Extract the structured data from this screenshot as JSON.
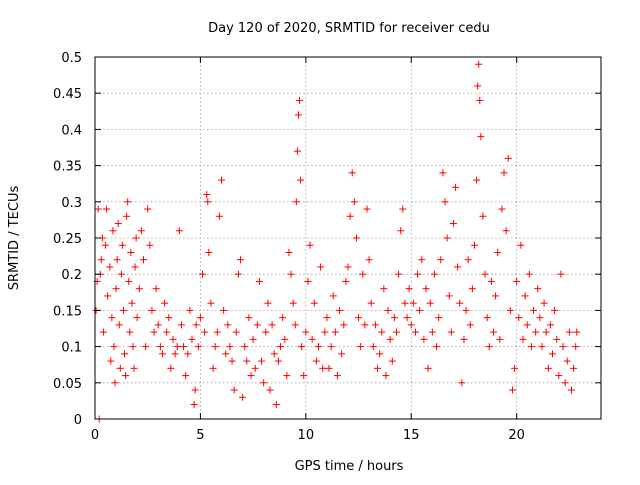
{
  "chart_data": {
    "type": "scatter",
    "title": "Day 120 of 2020, SRMTID for receiver cedu",
    "xlabel": "GPS time / hours",
    "ylabel": "SRMTID / TECUs",
    "xlim": [
      0,
      24.0
    ],
    "ylim": [
      0,
      0.5
    ],
    "x_ticks": [
      0,
      5,
      10,
      15,
      20
    ],
    "x_tick_labels": [
      "0",
      "5",
      "10",
      "15",
      "20"
    ],
    "y_ticks": [
      0,
      0.05,
      0.1,
      0.15,
      0.2,
      0.25,
      0.3,
      0.35,
      0.4,
      0.45,
      0.5
    ],
    "y_tick_labels": [
      "0",
      "0.05",
      "0.1",
      "0.15",
      "0.2",
      "0.25",
      "0.3",
      "0.35",
      "0.4",
      "0.45",
      "0.5"
    ],
    "grid": true,
    "marker": "+",
    "series": [
      {
        "name": "SRMTID",
        "color": "#ff0000",
        "points": [
          [
            0.05,
            0.15
          ],
          [
            0.1,
            0.19
          ],
          [
            0.15,
            0.29
          ],
          [
            0.2,
            0.0
          ],
          [
            0.25,
            0.2
          ],
          [
            0.3,
            0.22
          ],
          [
            0.35,
            0.25
          ],
          [
            0.4,
            0.12
          ],
          [
            0.5,
            0.24
          ],
          [
            0.55,
            0.29
          ],
          [
            0.6,
            0.17
          ],
          [
            0.7,
            0.21
          ],
          [
            0.75,
            0.08
          ],
          [
            0.8,
            0.14
          ],
          [
            0.85,
            0.26
          ],
          [
            0.9,
            0.1
          ],
          [
            0.95,
            0.05
          ],
          [
            1.0,
            0.18
          ],
          [
            1.05,
            0.22
          ],
          [
            1.1,
            0.27
          ],
          [
            1.15,
            0.13
          ],
          [
            1.2,
            0.07
          ],
          [
            1.25,
            0.2
          ],
          [
            1.3,
            0.24
          ],
          [
            1.35,
            0.15
          ],
          [
            1.4,
            0.09
          ],
          [
            1.45,
            0.06
          ],
          [
            1.5,
            0.28
          ],
          [
            1.55,
            0.3
          ],
          [
            1.6,
            0.19
          ],
          [
            1.65,
            0.12
          ],
          [
            1.7,
            0.23
          ],
          [
            1.75,
            0.16
          ],
          [
            1.8,
            0.1
          ],
          [
            1.85,
            0.07
          ],
          [
            1.9,
            0.21
          ],
          [
            1.95,
            0.25
          ],
          [
            2.0,
            0.14
          ],
          [
            2.1,
            0.18
          ],
          [
            2.2,
            0.26
          ],
          [
            2.3,
            0.22
          ],
          [
            2.4,
            0.1
          ],
          [
            2.5,
            0.29
          ],
          [
            2.6,
            0.24
          ],
          [
            2.7,
            0.15
          ],
          [
            2.8,
            0.12
          ],
          [
            2.9,
            0.18
          ],
          [
            3.0,
            0.13
          ],
          [
            3.1,
            0.1
          ],
          [
            3.2,
            0.09
          ],
          [
            3.3,
            0.16
          ],
          [
            3.4,
            0.12
          ],
          [
            3.5,
            0.14
          ],
          [
            3.6,
            0.07
          ],
          [
            3.7,
            0.11
          ],
          [
            3.8,
            0.09
          ],
          [
            3.9,
            0.1
          ],
          [
            4.0,
            0.26
          ],
          [
            4.1,
            0.13
          ],
          [
            4.2,
            0.1
          ],
          [
            4.3,
            0.06
          ],
          [
            4.4,
            0.09
          ],
          [
            4.5,
            0.15
          ],
          [
            4.6,
            0.11
          ],
          [
            4.7,
            0.02
          ],
          [
            4.75,
            0.04
          ],
          [
            4.8,
            0.13
          ],
          [
            4.9,
            0.1
          ],
          [
            5.0,
            0.14
          ],
          [
            5.1,
            0.2
          ],
          [
            5.2,
            0.12
          ],
          [
            5.3,
            0.31
          ],
          [
            5.35,
            0.3
          ],
          [
            5.4,
            0.23
          ],
          [
            5.5,
            0.16
          ],
          [
            5.6,
            0.07
          ],
          [
            5.7,
            0.1
          ],
          [
            5.8,
            0.12
          ],
          [
            5.9,
            0.28
          ],
          [
            6.0,
            0.33
          ],
          [
            6.1,
            0.15
          ],
          [
            6.2,
            0.09
          ],
          [
            6.3,
            0.13
          ],
          [
            6.4,
            0.1
          ],
          [
            6.5,
            0.08
          ],
          [
            6.6,
            0.04
          ],
          [
            6.7,
            0.12
          ],
          [
            6.8,
            0.2
          ],
          [
            6.9,
            0.22
          ],
          [
            7.0,
            0.03
          ],
          [
            7.1,
            0.1
          ],
          [
            7.2,
            0.08
          ],
          [
            7.3,
            0.14
          ],
          [
            7.4,
            0.06
          ],
          [
            7.5,
            0.11
          ],
          [
            7.6,
            0.07
          ],
          [
            7.7,
            0.13
          ],
          [
            7.8,
            0.19
          ],
          [
            7.9,
            0.08
          ],
          [
            8.0,
            0.05
          ],
          [
            8.1,
            0.12
          ],
          [
            8.2,
            0.16
          ],
          [
            8.3,
            0.04
          ],
          [
            8.4,
            0.13
          ],
          [
            8.5,
            0.09
          ],
          [
            8.6,
            0.02
          ],
          [
            8.7,
            0.08
          ],
          [
            8.8,
            0.1
          ],
          [
            8.9,
            0.14
          ],
          [
            9.0,
            0.11
          ],
          [
            9.1,
            0.06
          ],
          [
            9.2,
            0.23
          ],
          [
            9.3,
            0.2
          ],
          [
            9.4,
            0.16
          ],
          [
            9.5,
            0.13
          ],
          [
            9.55,
            0.3
          ],
          [
            9.6,
            0.37
          ],
          [
            9.65,
            0.42
          ],
          [
            9.7,
            0.44
          ],
          [
            9.75,
            0.33
          ],
          [
            9.8,
            0.1
          ],
          [
            9.9,
            0.06
          ],
          [
            10.0,
            0.12
          ],
          [
            10.1,
            0.19
          ],
          [
            10.2,
            0.24
          ],
          [
            10.3,
            0.11
          ],
          [
            10.4,
            0.16
          ],
          [
            10.5,
            0.08
          ],
          [
            10.6,
            0.1
          ],
          [
            10.7,
            0.21
          ],
          [
            10.8,
            0.07
          ],
          [
            10.9,
            0.12
          ],
          [
            11.0,
            0.14
          ],
          [
            11.1,
            0.07
          ],
          [
            11.2,
            0.1
          ],
          [
            11.3,
            0.17
          ],
          [
            11.4,
            0.12
          ],
          [
            11.5,
            0.06
          ],
          [
            11.6,
            0.15
          ],
          [
            11.7,
            0.09
          ],
          [
            11.8,
            0.13
          ],
          [
            11.9,
            0.19
          ],
          [
            12.0,
            0.21
          ],
          [
            12.1,
            0.28
          ],
          [
            12.2,
            0.34
          ],
          [
            12.3,
            0.3
          ],
          [
            12.4,
            0.25
          ],
          [
            12.5,
            0.14
          ],
          [
            12.6,
            0.1
          ],
          [
            12.7,
            0.2
          ],
          [
            12.8,
            0.13
          ],
          [
            12.9,
            0.29
          ],
          [
            13.0,
            0.22
          ],
          [
            13.1,
            0.16
          ],
          [
            13.2,
            0.1
          ],
          [
            13.3,
            0.13
          ],
          [
            13.4,
            0.07
          ],
          [
            13.5,
            0.09
          ],
          [
            13.6,
            0.12
          ],
          [
            13.7,
            0.18
          ],
          [
            13.8,
            0.06
          ],
          [
            13.9,
            0.15
          ],
          [
            14.0,
            0.11
          ],
          [
            14.1,
            0.08
          ],
          [
            14.2,
            0.14
          ],
          [
            14.3,
            0.12
          ],
          [
            14.4,
            0.2
          ],
          [
            14.5,
            0.26
          ],
          [
            14.6,
            0.29
          ],
          [
            14.7,
            0.16
          ],
          [
            14.8,
            0.14
          ],
          [
            14.9,
            0.18
          ],
          [
            15.0,
            0.13
          ],
          [
            15.1,
            0.16
          ],
          [
            15.2,
            0.12
          ],
          [
            15.3,
            0.2
          ],
          [
            15.4,
            0.15
          ],
          [
            15.5,
            0.22
          ],
          [
            15.6,
            0.11
          ],
          [
            15.7,
            0.18
          ],
          [
            15.8,
            0.07
          ],
          [
            15.9,
            0.16
          ],
          [
            16.0,
            0.12
          ],
          [
            16.1,
            0.2
          ],
          [
            16.2,
            0.1
          ],
          [
            16.3,
            0.14
          ],
          [
            16.4,
            0.22
          ],
          [
            16.5,
            0.34
          ],
          [
            16.6,
            0.3
          ],
          [
            16.7,
            0.25
          ],
          [
            16.8,
            0.17
          ],
          [
            16.9,
            0.12
          ],
          [
            17.0,
            0.27
          ],
          [
            17.1,
            0.32
          ],
          [
            17.2,
            0.21
          ],
          [
            17.3,
            0.16
          ],
          [
            17.4,
            0.05
          ],
          [
            17.5,
            0.11
          ],
          [
            17.6,
            0.15
          ],
          [
            17.7,
            0.22
          ],
          [
            17.8,
            0.13
          ],
          [
            17.9,
            0.18
          ],
          [
            18.0,
            0.24
          ],
          [
            18.1,
            0.33
          ],
          [
            18.15,
            0.46
          ],
          [
            18.2,
            0.49
          ],
          [
            18.25,
            0.44
          ],
          [
            18.3,
            0.39
          ],
          [
            18.4,
            0.28
          ],
          [
            18.5,
            0.2
          ],
          [
            18.6,
            0.14
          ],
          [
            18.7,
            0.1
          ],
          [
            18.8,
            0.19
          ],
          [
            18.9,
            0.12
          ],
          [
            19.0,
            0.17
          ],
          [
            19.1,
            0.23
          ],
          [
            19.2,
            0.11
          ],
          [
            19.3,
            0.29
          ],
          [
            19.4,
            0.34
          ],
          [
            19.5,
            0.26
          ],
          [
            19.6,
            0.36
          ],
          [
            19.7,
            0.15
          ],
          [
            19.8,
            0.04
          ],
          [
            19.9,
            0.07
          ],
          [
            20.0,
            0.19
          ],
          [
            20.1,
            0.14
          ],
          [
            20.2,
            0.24
          ],
          [
            20.3,
            0.11
          ],
          [
            20.4,
            0.17
          ],
          [
            20.5,
            0.13
          ],
          [
            20.6,
            0.2
          ],
          [
            20.7,
            0.1
          ],
          [
            20.8,
            0.15
          ],
          [
            20.9,
            0.12
          ],
          [
            21.0,
            0.18
          ],
          [
            21.1,
            0.14
          ],
          [
            21.2,
            0.1
          ],
          [
            21.3,
            0.16
          ],
          [
            21.4,
            0.12
          ],
          [
            21.5,
            0.07
          ],
          [
            21.6,
            0.13
          ],
          [
            21.7,
            0.09
          ],
          [
            21.8,
            0.15
          ],
          [
            21.9,
            0.11
          ],
          [
            22.0,
            0.06
          ],
          [
            22.1,
            0.2
          ],
          [
            22.2,
            0.1
          ],
          [
            22.3,
            0.05
          ],
          [
            22.4,
            0.08
          ],
          [
            22.5,
            0.12
          ],
          [
            22.6,
            0.04
          ],
          [
            22.7,
            0.07
          ],
          [
            22.8,
            0.1
          ],
          [
            22.85,
            0.12
          ]
        ]
      }
    ]
  }
}
